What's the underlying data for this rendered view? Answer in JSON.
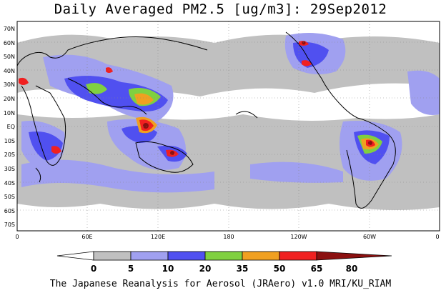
{
  "title": "Daily Averaged PM2.5 [ug/m3]: 29Sep2012",
  "footer": "The Japanese Reanalysis for Aerosol (JRAero) v1.0 MRI/KU_RIAM",
  "lat_labels": [
    "70N",
    "60N",
    "50N",
    "40N",
    "30N",
    "20N",
    "10N",
    "EQ",
    "10S",
    "20S",
    "30S",
    "40S",
    "50S",
    "60S",
    "70S"
  ],
  "lon_labels": [
    "0",
    "60E",
    "120E",
    "180",
    "120W",
    "60W",
    "0"
  ],
  "colorbar": {
    "levels": [
      "0",
      "5",
      "10",
      "20",
      "35",
      "50",
      "65",
      "80"
    ],
    "colors": [
      "#ffffff",
      "#c0c0c0",
      "#a0a0f0",
      "#5050f0",
      "#80d040",
      "#f0a020",
      "#f02020",
      "#8b1010"
    ]
  },
  "map_colors": {
    "ocean": "#ffffff",
    "low": "#c0c0c0",
    "mid": "#a0a0f0",
    "blue": "#5050f0",
    "green": "#80d040",
    "orange": "#f0a020",
    "red": "#f02020",
    "dark": "#8b1010"
  }
}
